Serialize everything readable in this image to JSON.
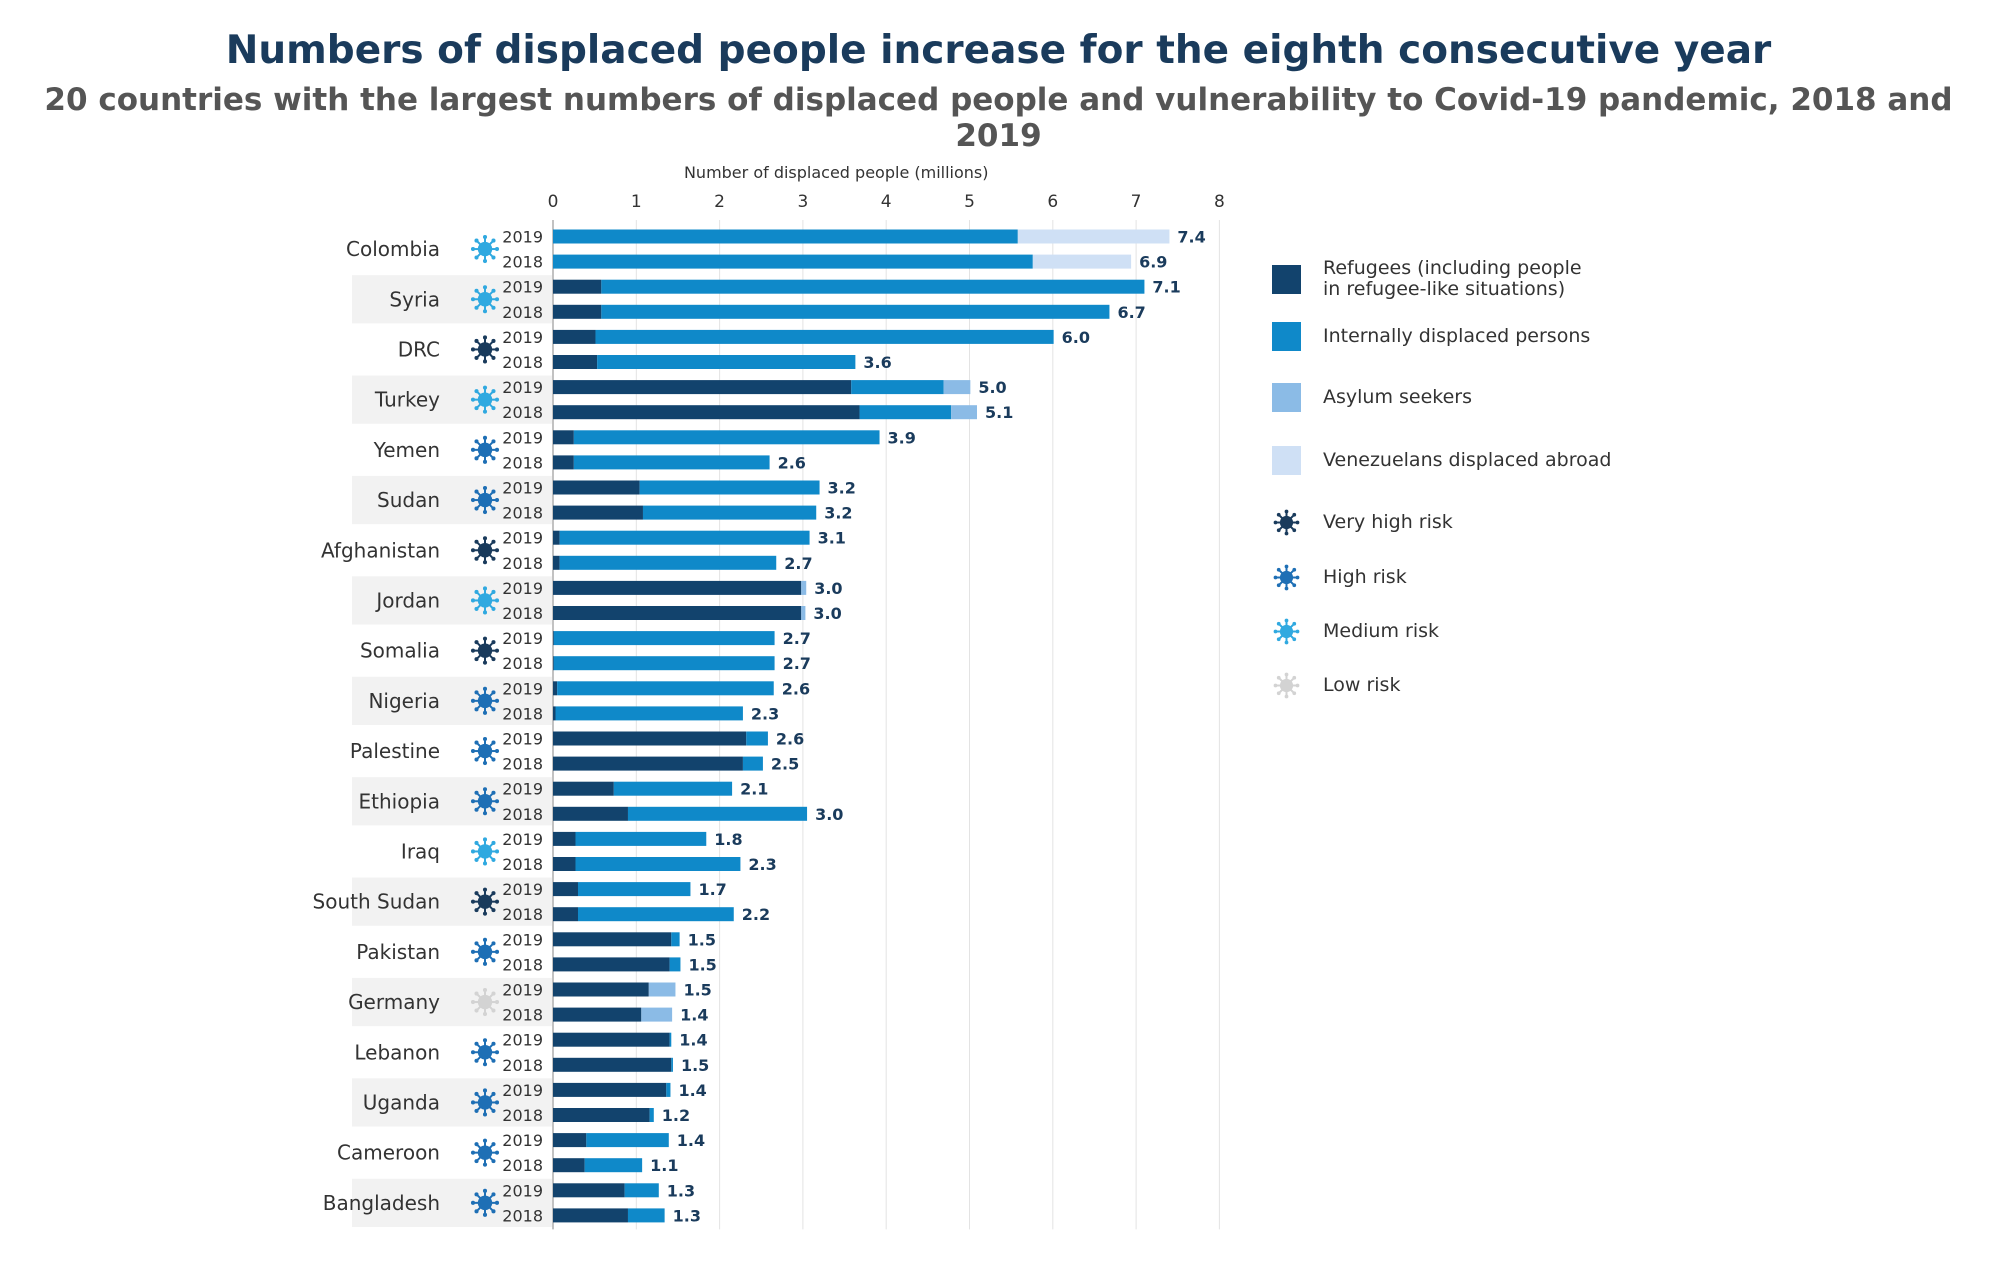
{
  "title": "Numbers of displaced people increase for the eighth consecutive year",
  "subtitle": "20 countries with the largest numbers of displaced people and vulnerability to Covid-19 pandemic, 2018 and 2019",
  "colors": {
    "refugees": "#12436d",
    "idp": "#0f89c9",
    "asylum": "#8bbbe6",
    "venezuelans": "#cfe0f5",
    "risk_very_high": "#1a3b5c",
    "risk_high": "#1e6fb5",
    "risk_medium": "#30a9e0",
    "risk_low": "#d3d3d3"
  },
  "legend": {
    "series": [
      {
        "key": "refugees",
        "label": "Refugees (including people\nin refugee-like situations)"
      },
      {
        "key": "idp",
        "label": "Internally displaced persons"
      },
      {
        "key": "asylum",
        "label": "Asylum seekers"
      },
      {
        "key": "venezuelans",
        "label": "Venezuelans displaced abroad"
      }
    ],
    "risks": [
      {
        "key": "very_high",
        "label": "Very high risk"
      },
      {
        "key": "high",
        "label": "High risk"
      },
      {
        "key": "medium",
        "label": "Medium risk"
      },
      {
        "key": "low",
        "label": "Low risk"
      }
    ]
  },
  "chart_data": {
    "type": "bar",
    "orientation": "horizontal",
    "stacked": true,
    "title": "Numbers of displaced people increase for the eighth consecutive year",
    "xlabel": "Number of displaced people (millions)",
    "xlim": [
      0,
      8
    ],
    "xticks": [
      0,
      1,
      2,
      3,
      4,
      5,
      6,
      7,
      8
    ],
    "grid": true,
    "legend_position": "right",
    "series_names": [
      "Refugees (including people in refugee-like situations)",
      "Internally displaced persons",
      "Asylum seekers",
      "Venezuelans displaced abroad"
    ],
    "countries": [
      {
        "name": "Colombia",
        "risk": "medium",
        "years": [
          {
            "year": "2019",
            "values": [
              0,
              5.58,
              0,
              1.82
            ],
            "total": "7.4"
          },
          {
            "year": "2018",
            "values": [
              0,
              5.76,
              0,
              1.18
            ],
            "total": "6.9"
          }
        ]
      },
      {
        "name": "Syria",
        "risk": "medium",
        "years": [
          {
            "year": "2019",
            "values": [
              0.58,
              6.52,
              0,
              0
            ],
            "total": "7.1"
          },
          {
            "year": "2018",
            "values": [
              0.58,
              6.1,
              0,
              0
            ],
            "total": "6.7"
          }
        ]
      },
      {
        "name": "DRC",
        "risk": "very_high",
        "years": [
          {
            "year": "2019",
            "values": [
              0.51,
              5.5,
              0,
              0
            ],
            "total": "6.0"
          },
          {
            "year": "2018",
            "values": [
              0.53,
              3.1,
              0,
              0
            ],
            "total": "3.6"
          }
        ]
      },
      {
        "name": "Turkey",
        "risk": "medium",
        "years": [
          {
            "year": "2019",
            "values": [
              3.58,
              1.11,
              0.32,
              0
            ],
            "total": "5.0"
          },
          {
            "year": "2018",
            "values": [
              3.68,
              1.1,
              0.31,
              0
            ],
            "total": "5.1"
          }
        ]
      },
      {
        "name": "Yemen",
        "risk": "high",
        "years": [
          {
            "year": "2019",
            "values": [
              0.25,
              3.67,
              0,
              0
            ],
            "total": "3.9"
          },
          {
            "year": "2018",
            "values": [
              0.25,
              2.35,
              0,
              0
            ],
            "total": "2.6"
          }
        ]
      },
      {
        "name": "Sudan",
        "risk": "high",
        "years": [
          {
            "year": "2019",
            "values": [
              1.04,
              2.16,
              0,
              0
            ],
            "total": "3.2"
          },
          {
            "year": "2018",
            "values": [
              1.08,
              2.08,
              0,
              0
            ],
            "total": "3.2"
          }
        ]
      },
      {
        "name": "Afghanistan",
        "risk": "very_high",
        "years": [
          {
            "year": "2019",
            "values": [
              0.08,
              3.0,
              0,
              0
            ],
            "total": "3.1"
          },
          {
            "year": "2018",
            "values": [
              0.08,
              2.6,
              0,
              0
            ],
            "total": "2.7"
          }
        ]
      },
      {
        "name": "Jordan",
        "risk": "medium",
        "years": [
          {
            "year": "2019",
            "values": [
              2.98,
              0,
              0.06,
              0
            ],
            "total": "3.0"
          },
          {
            "year": "2018",
            "values": [
              2.98,
              0,
              0.05,
              0
            ],
            "total": "3.0"
          }
        ]
      },
      {
        "name": "Somalia",
        "risk": "very_high",
        "years": [
          {
            "year": "2019",
            "values": [
              0.01,
              2.65,
              0,
              0
            ],
            "total": "2.7"
          },
          {
            "year": "2018",
            "values": [
              0.01,
              2.65,
              0,
              0
            ],
            "total": "2.7"
          }
        ]
      },
      {
        "name": "Nigeria",
        "risk": "high",
        "years": [
          {
            "year": "2019",
            "values": [
              0.05,
              2.6,
              0,
              0
            ],
            "total": "2.6"
          },
          {
            "year": "2018",
            "values": [
              0.03,
              2.25,
              0,
              0
            ],
            "total": "2.3"
          }
        ]
      },
      {
        "name": "Palestine",
        "risk": "high",
        "years": [
          {
            "year": "2019",
            "values": [
              2.32,
              0.26,
              0,
              0
            ],
            "total": "2.6"
          },
          {
            "year": "2018",
            "values": [
              2.28,
              0.24,
              0,
              0
            ],
            "total": "2.5"
          }
        ]
      },
      {
        "name": "Ethiopia",
        "risk": "high",
        "years": [
          {
            "year": "2019",
            "values": [
              0.73,
              1.42,
              0,
              0
            ],
            "total": "2.1"
          },
          {
            "year": "2018",
            "values": [
              0.9,
              2.15,
              0,
              0
            ],
            "total": "3.0"
          }
        ]
      },
      {
        "name": "Iraq",
        "risk": "medium",
        "years": [
          {
            "year": "2019",
            "values": [
              0.27,
              1.57,
              0,
              0
            ],
            "total": "1.8"
          },
          {
            "year": "2018",
            "values": [
              0.27,
              1.98,
              0,
              0
            ],
            "total": "2.3"
          }
        ]
      },
      {
        "name": "South Sudan",
        "risk": "very_high",
        "years": [
          {
            "year": "2019",
            "values": [
              0.3,
              1.35,
              0,
              0
            ],
            "total": "1.7"
          },
          {
            "year": "2018",
            "values": [
              0.3,
              1.87,
              0,
              0
            ],
            "total": "2.2"
          }
        ]
      },
      {
        "name": "Pakistan",
        "risk": "high",
        "years": [
          {
            "year": "2019",
            "values": [
              1.42,
              0.1,
              0,
              0
            ],
            "total": "1.5"
          },
          {
            "year": "2018",
            "values": [
              1.4,
              0.13,
              0,
              0
            ],
            "total": "1.5"
          }
        ]
      },
      {
        "name": "Germany",
        "risk": "low",
        "years": [
          {
            "year": "2019",
            "values": [
              1.15,
              0,
              0.32,
              0
            ],
            "total": "1.5"
          },
          {
            "year": "2018",
            "values": [
              1.06,
              0,
              0.37,
              0
            ],
            "total": "1.4"
          }
        ]
      },
      {
        "name": "Lebanon",
        "risk": "high",
        "years": [
          {
            "year": "2019",
            "values": [
              1.4,
              0.02,
              0,
              0
            ],
            "total": "1.4"
          },
          {
            "year": "2018",
            "values": [
              1.42,
              0.02,
              0,
              0
            ],
            "total": "1.5"
          }
        ]
      },
      {
        "name": "Uganda",
        "risk": "high",
        "years": [
          {
            "year": "2019",
            "values": [
              1.36,
              0.05,
              0,
              0
            ],
            "total": "1.4"
          },
          {
            "year": "2018",
            "values": [
              1.16,
              0.05,
              0,
              0
            ],
            "total": "1.2"
          }
        ]
      },
      {
        "name": "Cameroon",
        "risk": "high",
        "years": [
          {
            "year": "2019",
            "values": [
              0.4,
              0.99,
              0,
              0
            ],
            "total": "1.4"
          },
          {
            "year": "2018",
            "values": [
              0.38,
              0.69,
              0,
              0
            ],
            "total": "1.1"
          }
        ]
      },
      {
        "name": "Bangladesh",
        "risk": "high",
        "years": [
          {
            "year": "2019",
            "values": [
              0.86,
              0.41,
              0,
              0
            ],
            "total": "1.3"
          },
          {
            "year": "2018",
            "values": [
              0.9,
              0.44,
              0,
              0
            ],
            "total": "1.3"
          }
        ]
      }
    ]
  }
}
